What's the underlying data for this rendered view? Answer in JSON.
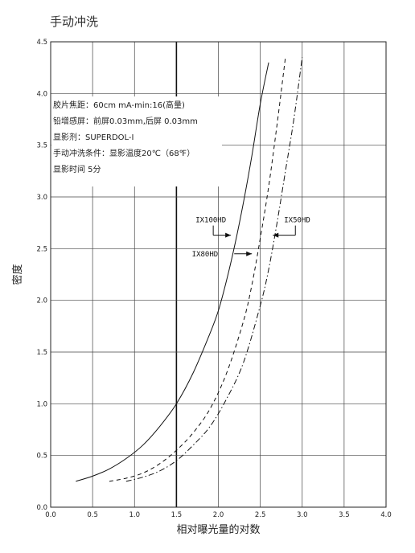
{
  "page": {
    "title": "手动冲洗"
  },
  "chart_data": {
    "type": "line",
    "title": "手动冲洗",
    "xlabel": "相对曝光量的对数",
    "ylabel": "密度",
    "xlim": [
      0.0,
      4.0
    ],
    "ylim": [
      0.0,
      4.5
    ],
    "x_ticks": [
      "0.0",
      "0.5",
      "1.0",
      "1.5",
      "2.0",
      "2.5",
      "3.0",
      "3.5",
      "4.0"
    ],
    "y_ticks": [
      "0.0",
      "0.5",
      "1.0",
      "1.5",
      "2.0",
      "2.5",
      "3.0",
      "3.5",
      "4.0",
      "4.5"
    ],
    "grid": true,
    "notes": [
      "胶片焦距：60cm mA-min:16(高量)",
      "铅增感屏：前屏0.03mm,后屏 0.03mm",
      "显影剂：SUPERDOL-I",
      "手动冲洗条件：显影温度20℃（68℉）",
      "显影时间 5分"
    ],
    "series": [
      {
        "name": "IX100HD",
        "style": "solid",
        "x": [
          0.3,
          0.5,
          0.7,
          0.9,
          1.1,
          1.3,
          1.5,
          1.7,
          1.9,
          2.0,
          2.1,
          2.2,
          2.3,
          2.4,
          2.5,
          2.6
        ],
        "y": [
          0.25,
          0.3,
          0.37,
          0.47,
          0.6,
          0.78,
          1.0,
          1.3,
          1.68,
          1.9,
          2.2,
          2.55,
          2.95,
          3.4,
          3.9,
          4.3
        ]
      },
      {
        "name": "IX80HD",
        "style": "dashed",
        "x": [
          0.7,
          0.9,
          1.1,
          1.3,
          1.5,
          1.7,
          1.9,
          2.1,
          2.3,
          2.4,
          2.5,
          2.6,
          2.7,
          2.8
        ],
        "y": [
          0.25,
          0.28,
          0.33,
          0.42,
          0.55,
          0.72,
          0.95,
          1.3,
          1.8,
          2.15,
          2.6,
          3.1,
          3.7,
          4.35
        ]
      },
      {
        "name": "IX50HD",
        "style": "dashdot",
        "x": [
          0.9,
          1.1,
          1.3,
          1.5,
          1.7,
          1.9,
          2.1,
          2.3,
          2.5,
          2.6,
          2.7,
          2.8,
          2.9,
          3.0
        ],
        "y": [
          0.25,
          0.29,
          0.35,
          0.45,
          0.6,
          0.78,
          1.05,
          1.4,
          1.95,
          2.3,
          2.75,
          3.25,
          3.75,
          4.35
        ]
      }
    ],
    "annotations": [
      {
        "text": "IX100HD",
        "target": [
          2.15,
          2.63
        ],
        "arrow": "right"
      },
      {
        "text": "IX80HD",
        "target": [
          2.4,
          2.45
        ],
        "arrow": "right"
      },
      {
        "text": "IX50HD",
        "target": [
          2.65,
          2.63
        ],
        "arrow": "left"
      }
    ]
  }
}
